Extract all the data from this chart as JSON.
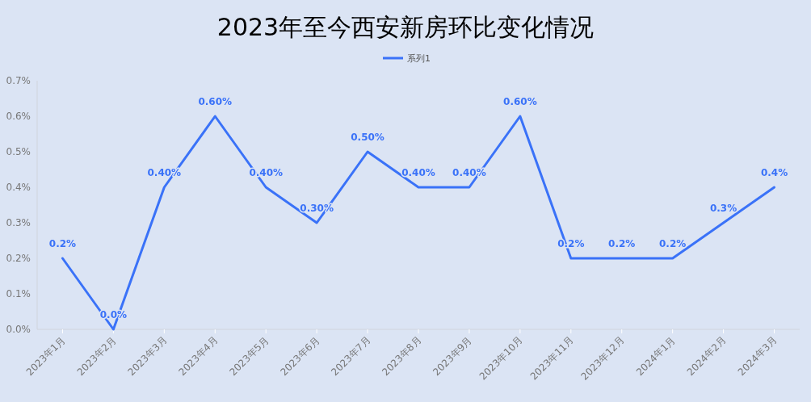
{
  "chart_data": {
    "type": "line",
    "title": "2023年至今西安新房环比变化情况",
    "categories": [
      "2023年1月",
      "2023年2月",
      "2023年3月",
      "2023年4月",
      "2023年5月",
      "2023年6月",
      "2023年7月",
      "2023年8月",
      "2023年9月",
      "2023年10月",
      "2023年11月",
      "2023年12月",
      "2024年1月",
      "2024年2月",
      "2024年3月"
    ],
    "series": [
      {
        "name": "系列1",
        "color": "#3a72f8",
        "values": [
          0.2,
          0,
          0.4,
          0.6,
          0.4,
          0.3,
          0.5,
          0.4,
          0.4,
          0.6,
          0.2,
          0.2,
          0.2,
          0.3,
          0.4
        ],
        "value_labels": [
          "0.2%",
          "0.0%",
          "0.40%",
          "0.60%",
          "0.40%",
          "0.30%",
          "0.50%",
          "0.40%",
          "0.40%",
          "0.60%",
          "0.2%",
          "0.2%",
          "0.2%",
          "0.3%",
          "0.4%"
        ]
      }
    ],
    "ylim": [
      0,
      0.7
    ],
    "yticks": [
      {
        "value": 0,
        "label": "0.0%"
      },
      {
        "value": 0.1,
        "label": "0.1%"
      },
      {
        "value": 0.2,
        "label": "0.2%"
      },
      {
        "value": 0.3,
        "label": "0.3%"
      },
      {
        "value": 0.4,
        "label": "0.4%"
      },
      {
        "value": 0.5,
        "label": "0.5%"
      },
      {
        "value": 0.6,
        "label": "0.6%"
      },
      {
        "value": 0.7,
        "label": "0.7%"
      }
    ],
    "legend": "top",
    "marker": "none",
    "line_style": "solid"
  }
}
